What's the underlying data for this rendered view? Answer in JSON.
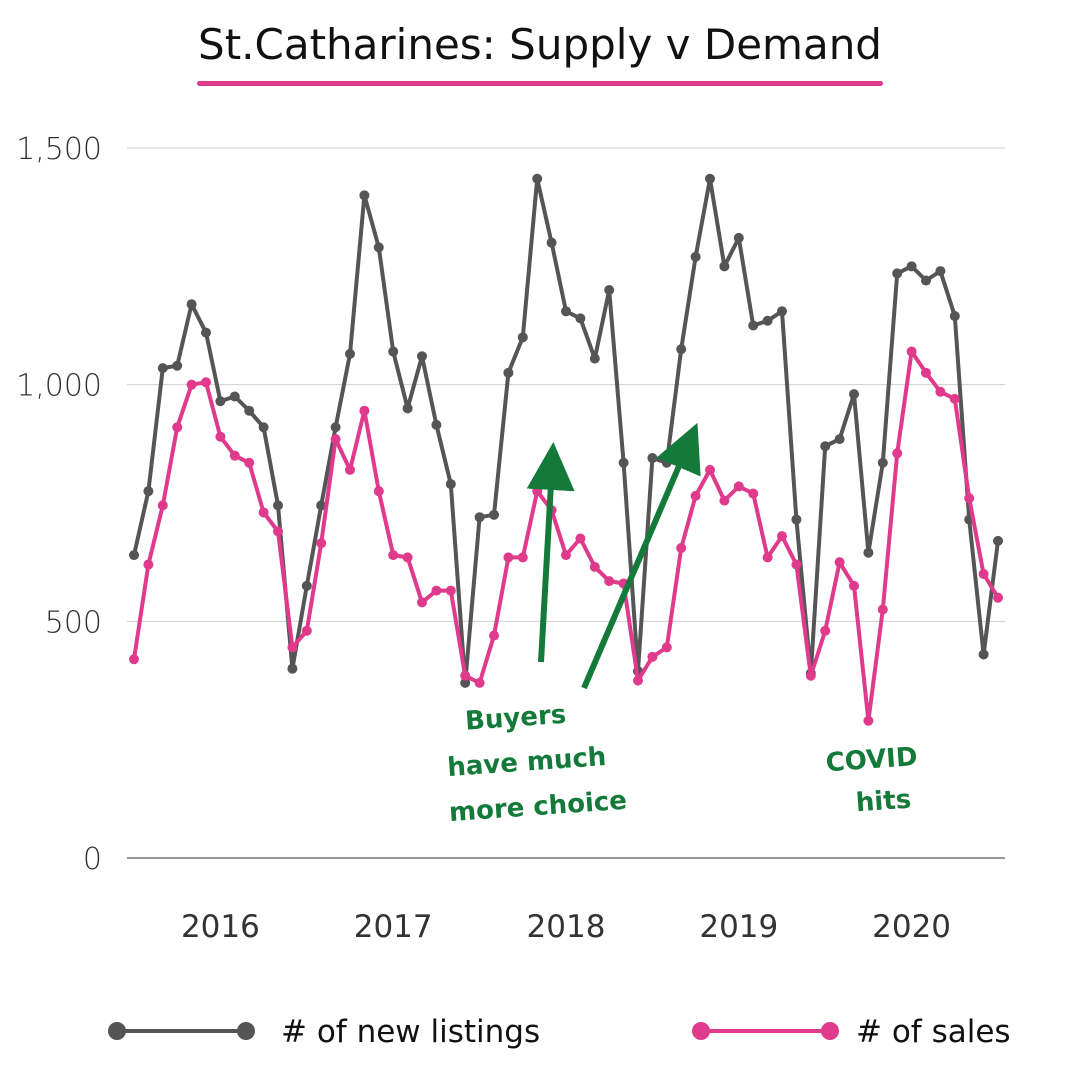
{
  "title": "St.Catharines:  Supply v Demand",
  "colors": {
    "listings": "#555555",
    "sales": "#e03a8c",
    "annotation": "#137a3a",
    "accent": "#e03a8c"
  },
  "chart_data": {
    "type": "line",
    "ylim": [
      0,
      1500
    ],
    "yticks": [
      0,
      500,
      1000,
      1500
    ],
    "ytick_labels": [
      "0",
      "500",
      "1,000",
      "1,500"
    ],
    "xticks": [
      {
        "label": "2016",
        "month_index": 6
      },
      {
        "label": "2017",
        "month_index": 18
      },
      {
        "label": "2018",
        "month_index": 30
      },
      {
        "label": "2019",
        "month_index": 42
      },
      {
        "label": "2020",
        "month_index": 54
      }
    ],
    "grid": true,
    "legend_position": "bottom",
    "series": [
      {
        "name": "# of new listings",
        "color": "#555555",
        "values": [
          640,
          775,
          1035,
          1040,
          1170,
          1110,
          965,
          975,
          945,
          910,
          745,
          400,
          575,
          745,
          910,
          1065,
          1400,
          1290,
          1070,
          950,
          1060,
          915,
          790,
          370,
          720,
          725,
          1025,
          1100,
          1435,
          1300,
          1155,
          1140,
          1055,
          1200,
          835,
          395,
          845,
          835,
          1075,
          1270,
          1435,
          1250,
          1310,
          1125,
          1135,
          1155,
          715,
          390,
          870,
          885,
          980,
          645,
          835,
          1235,
          1250,
          1220,
          1240,
          1145,
          715,
          430,
          670
        ]
      },
      {
        "name": "# of sales",
        "color": "#e03a8c",
        "values": [
          420,
          620,
          745,
          910,
          1000,
          1005,
          890,
          850,
          835,
          730,
          690,
          445,
          480,
          665,
          885,
          820,
          945,
          775,
          640,
          635,
          540,
          565,
          565,
          385,
          370,
          470,
          635,
          635,
          775,
          735,
          640,
          675,
          615,
          585,
          580,
          375,
          425,
          445,
          655,
          765,
          820,
          755,
          785,
          770,
          635,
          680,
          620,
          385,
          480,
          625,
          575,
          290,
          525,
          855,
          1070,
          1025,
          985,
          970,
          760,
          600,
          550
        ]
      }
    ],
    "annotations": [
      {
        "lines": [
          "Buyers",
          "have much",
          "more choice"
        ]
      },
      {
        "lines": [
          "COVID",
          "hits"
        ]
      }
    ]
  }
}
